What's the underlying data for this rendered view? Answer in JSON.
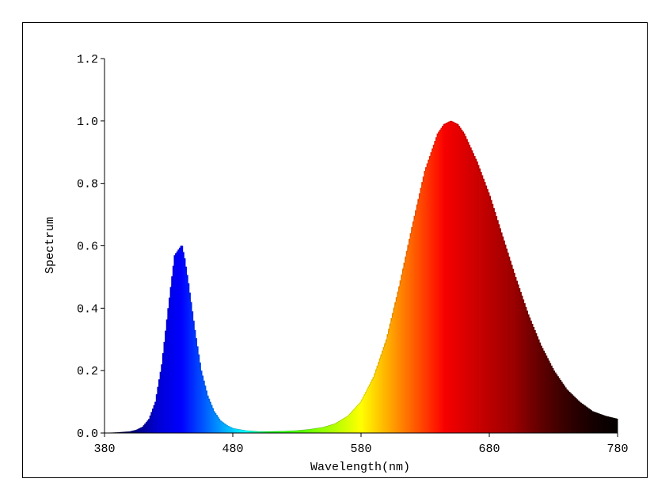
{
  "chart_data": {
    "type": "area",
    "title": "",
    "xlabel": "Wavelength(nm)",
    "ylabel": "Spectrum",
    "xlim": [
      380,
      780
    ],
    "ylim": [
      0,
      1.2
    ],
    "x_ticks": [
      380,
      480,
      580,
      680,
      780
    ],
    "y_ticks": [
      0.0,
      0.2,
      0.4,
      0.6,
      0.8,
      1.0,
      1.2
    ],
    "x_tick_labels": [
      "380",
      "480",
      "580",
      "680",
      "780"
    ],
    "y_tick_labels": [
      "0.0",
      "0.2",
      "0.4",
      "0.6",
      "0.8",
      "1.0",
      "1.2"
    ],
    "grid": false,
    "fill": "wavelength-colored spectrum (blue to red to black)",
    "series": [
      {
        "x": [
          380,
          390,
          400,
          405,
          410,
          415,
          420,
          425,
          430,
          435,
          440,
          442,
          445,
          450,
          455,
          460,
          465,
          470,
          475,
          480,
          490,
          500,
          510,
          520,
          530,
          540,
          550,
          560,
          570,
          580,
          590,
          600,
          610,
          620,
          630,
          640,
          645,
          650,
          655,
          660,
          670,
          680,
          690,
          700,
          710,
          720,
          730,
          740,
          750,
          760,
          770,
          780
        ],
        "y": [
          0.0,
          0.002,
          0.005,
          0.01,
          0.02,
          0.045,
          0.1,
          0.22,
          0.4,
          0.57,
          0.6,
          0.56,
          0.48,
          0.33,
          0.2,
          0.12,
          0.07,
          0.04,
          0.025,
          0.015,
          0.008,
          0.005,
          0.005,
          0.006,
          0.008,
          0.012,
          0.018,
          0.03,
          0.055,
          0.1,
          0.18,
          0.3,
          0.47,
          0.66,
          0.84,
          0.96,
          0.99,
          1.0,
          0.99,
          0.96,
          0.87,
          0.76,
          0.63,
          0.5,
          0.38,
          0.28,
          0.2,
          0.14,
          0.1,
          0.07,
          0.055,
          0.045
        ]
      }
    ]
  }
}
